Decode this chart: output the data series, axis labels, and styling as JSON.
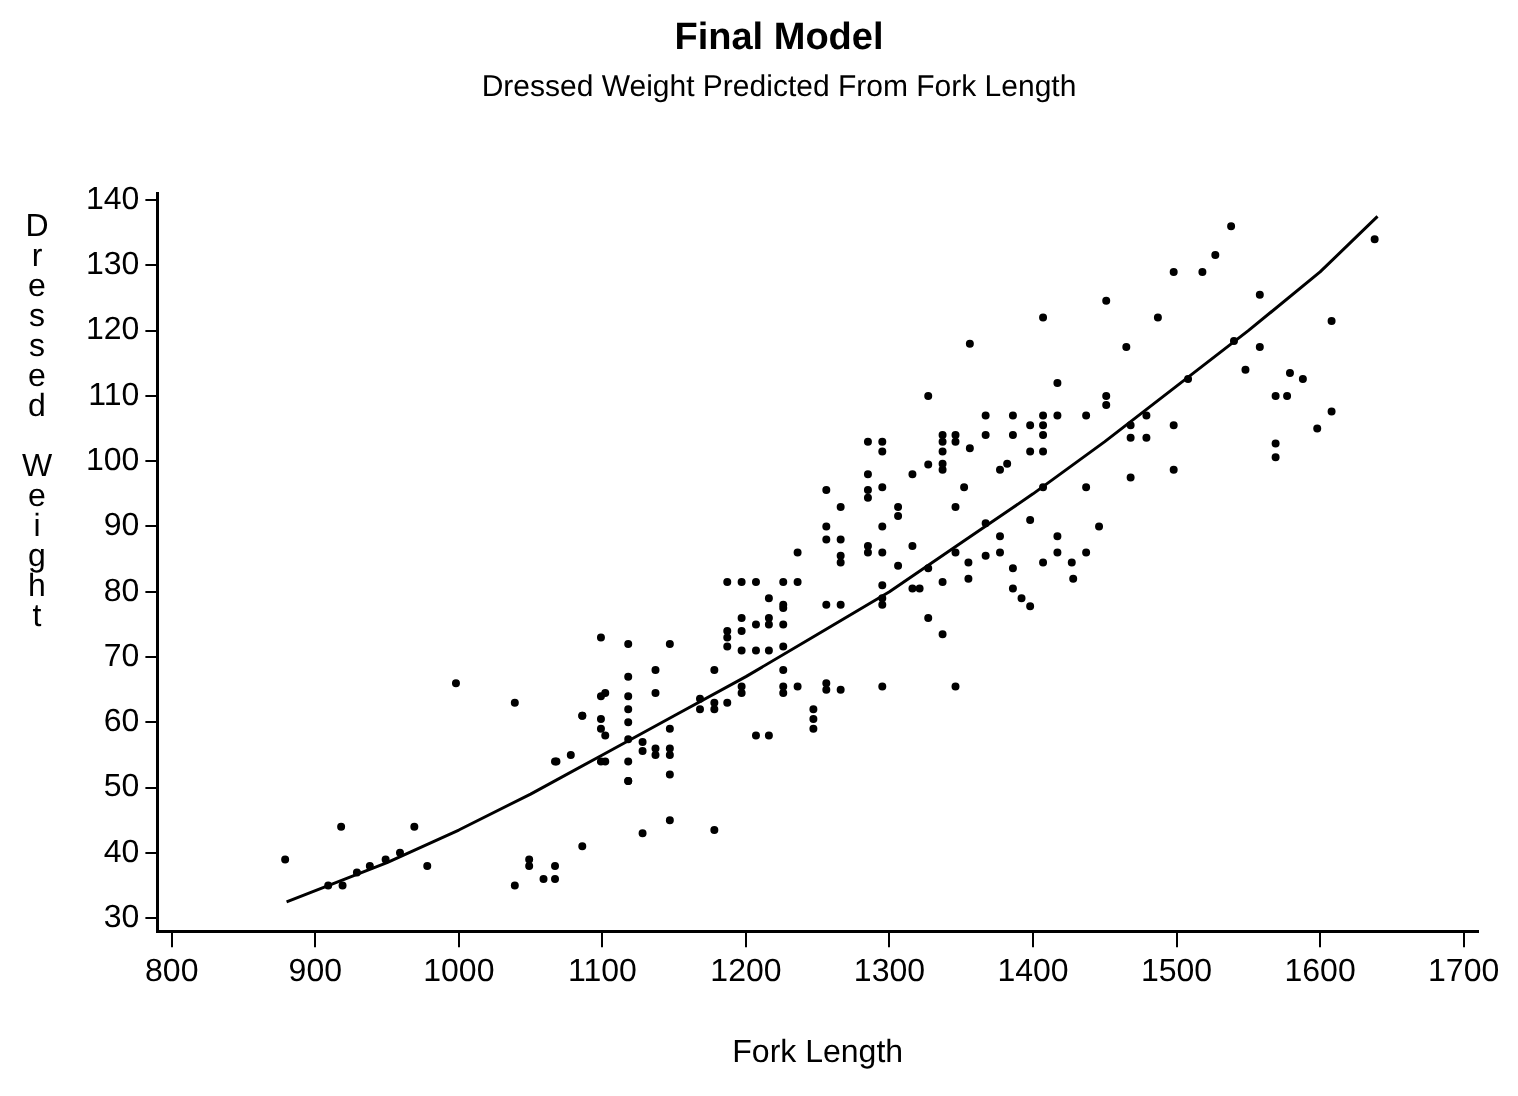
{
  "chart_data": {
    "type": "scatter",
    "title": "Final Model",
    "subtitle": "Dressed Weight Predicted From Fork Length",
    "xlabel": "Fork Length",
    "ylabel": "Dressed Weight",
    "xlim": [
      790,
      1710
    ],
    "xticks": [
      800,
      900,
      1000,
      1100,
      1200,
      1300,
      1400,
      1500,
      1600,
      1700
    ],
    "ylim": [
      28,
      141
    ],
    "yticks": [
      30,
      40,
      50,
      60,
      70,
      80,
      90,
      100,
      110,
      120,
      130,
      140
    ],
    "grid": false,
    "legend": false,
    "marker": "circle",
    "series": [
      {
        "color": "#000000",
        "x": [
          879,
          918,
          909,
          919,
          929,
          938,
          949,
          959,
          969,
          978,
          998,
          1039,
          1039,
          1049,
          1049,
          1059,
          1067,
          1067,
          1067,
          1078,
          1086,
          1086,
          1099,
          1099,
          1099,
          1099,
          1099,
          1118,
          1118,
          1118,
          1118,
          1118,
          1118,
          1118,
          1068,
          1086,
          1102,
          1102,
          1102,
          1118,
          1118,
          1128,
          1128,
          1128,
          1137,
          1137,
          1137,
          1137,
          1147,
          1147,
          1147,
          1147,
          1147,
          1147,
          1168,
          1168,
          1178,
          1178,
          1178,
          1178,
          1187,
          1187,
          1187,
          1187,
          1187,
          1197,
          1197,
          1197,
          1197,
          1197,
          1197,
          1207,
          1207,
          1207,
          1207,
          1216,
          1216,
          1216,
          1216,
          1216,
          1226,
          1226,
          1226,
          1226,
          1226,
          1226,
          1226,
          1226,
          1236,
          1236,
          1236,
          1247,
          1247,
          1247,
          1256,
          1256,
          1256,
          1256,
          1256,
          1256,
          1266,
          1266,
          1266,
          1266,
          1266,
          1266,
          1285,
          1285,
          1285,
          1285,
          1285,
          1285,
          1295,
          1295,
          1295,
          1295,
          1295,
          1295,
          1295,
          1295,
          1295,
          1306,
          1306,
          1306,
          1316,
          1316,
          1316,
          1321,
          1327,
          1327,
          1327,
          1327,
          1337,
          1337,
          1337,
          1337,
          1337,
          1337,
          1337,
          1346,
          1346,
          1346,
          1346,
          1346,
          1352,
          1355,
          1355,
          1356,
          1356,
          1367,
          1367,
          1367,
          1367,
          1377,
          1377,
          1377,
          1382,
          1386,
          1386,
          1386,
          1386,
          1392,
          1398,
          1398,
          1398,
          1398,
          1407,
          1407,
          1407,
          1407,
          1407,
          1407,
          1407,
          1417,
          1417,
          1417,
          1417,
          1427,
          1428,
          1437,
          1437,
          1437,
          1446,
          1451,
          1451,
          1451,
          1465,
          1468,
          1468,
          1468,
          1479,
          1479,
          1487,
          1498,
          1498,
          1498,
          1508,
          1518,
          1527,
          1538,
          1540,
          1548,
          1558,
          1558,
          1569,
          1569,
          1569,
          1577,
          1579,
          1588,
          1598,
          1608,
          1608,
          1638
        ],
        "values": [
          39,
          44,
          35,
          35,
          37,
          38,
          39,
          40,
          44,
          38,
          66,
          63,
          35,
          39,
          38,
          36,
          38,
          36,
          54,
          55,
          61,
          41,
          73,
          64,
          60.5,
          59,
          54,
          72,
          67,
          64,
          62,
          60,
          54,
          51,
          54,
          61,
          64.5,
          58,
          54,
          57.4,
          51,
          57,
          55.6,
          43,
          68,
          64.5,
          56,
          55,
          72,
          59,
          56,
          55,
          52,
          45,
          63.6,
          62,
          68,
          63,
          62,
          43.5,
          81.5,
          74,
          73,
          71.6,
          63,
          81.5,
          76,
          74,
          71,
          65.5,
          64.5,
          81.5,
          75,
          71,
          58,
          79,
          76,
          75,
          71,
          58,
          81.5,
          78,
          77.5,
          75,
          71.6,
          68,
          65.5,
          64.5,
          86,
          81.5,
          65.5,
          62,
          60.5,
          59,
          95.6,
          90,
          88,
          78,
          66,
          65,
          93,
          88,
          85.5,
          84.5,
          78,
          65,
          103,
          98,
          95.6,
          94.4,
          87,
          86,
          103,
          101.5,
          96,
          90,
          86,
          81,
          79,
          78,
          65.5,
          93,
          91.6,
          84,
          98,
          87,
          80.5,
          80.5,
          110,
          99.5,
          83.6,
          76,
          104,
          103,
          101.5,
          99.6,
          98.7,
          81.5,
          73.5,
          104,
          103,
          93,
          86,
          65.5,
          96,
          84.5,
          82,
          118,
          102,
          107,
          104,
          90.5,
          85.5,
          98.7,
          88.5,
          86,
          99.6,
          107,
          104,
          83.6,
          80.5,
          79,
          77.8,
          105.5,
          101.5,
          91,
          122,
          107,
          105.5,
          104,
          101.5,
          96,
          84.5,
          112,
          107,
          88.5,
          86,
          84.5,
          82,
          107,
          96,
          86,
          90,
          124.6,
          110,
          108.6,
          117.5,
          105.5,
          103.6,
          97.5,
          107,
          103.6,
          122,
          129,
          105.5,
          98.7,
          112.6,
          129,
          131.6,
          136,
          118.4,
          114,
          125.5,
          117.5,
          110,
          102.7,
          100.6,
          110,
          113.5,
          112.6,
          105,
          121.5,
          107.6,
          134
        ]
      },
      {
        "type": "line",
        "color": "#000000",
        "marker": "none",
        "line_style": "solid",
        "x": [
          880,
          950,
          1000,
          1050,
          1100,
          1150,
          1200,
          1250,
          1300,
          1350,
          1400,
          1450,
          1500,
          1550,
          1600,
          1640
        ],
        "values": [
          32.5,
          38.5,
          43.5,
          49,
          55,
          61,
          67,
          73.5,
          80,
          87.5,
          95,
          103,
          111.5,
          120,
          129,
          137.5
        ]
      }
    ]
  }
}
